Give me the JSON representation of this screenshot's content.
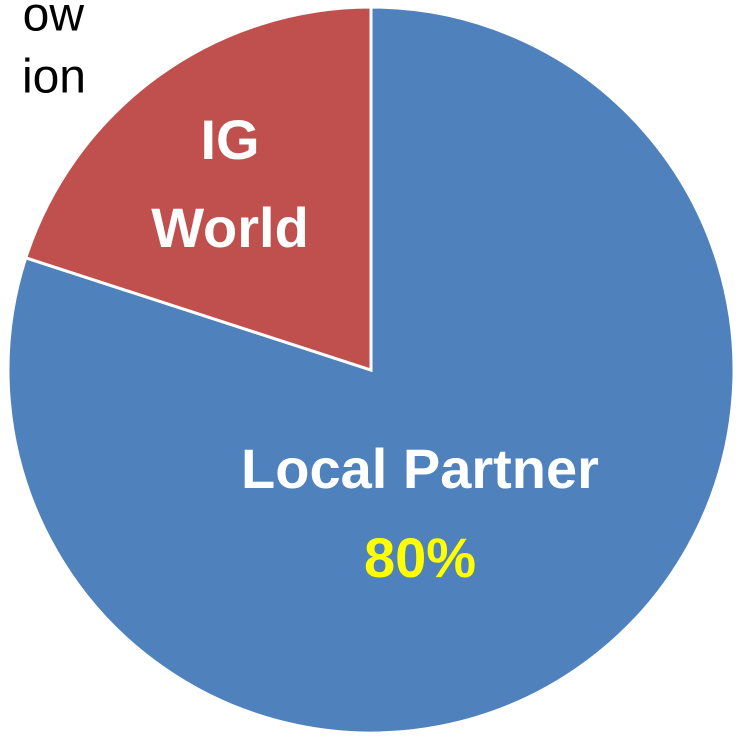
{
  "chart_data": {
    "type": "pie",
    "annotations": [
      "ow",
      "ion"
    ],
    "categories": [
      "Local Partner",
      "IG World"
    ],
    "values": [
      80,
      20
    ],
    "value_labels": [
      "80%",
      null
    ],
    "colors": [
      "#4f81bd",
      "#c0504d"
    ]
  }
}
